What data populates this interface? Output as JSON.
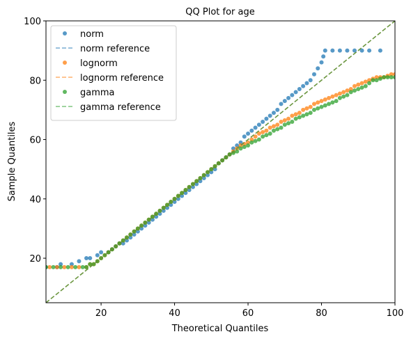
{
  "chart_data": {
    "type": "scatter",
    "title": "QQ Plot for age",
    "xlabel": "Theoretical Quantiles",
    "ylabel": "Sample Quantiles",
    "xlim": [
      5,
      100
    ],
    "ylim": [
      5,
      100
    ],
    "xticks": [
      20,
      40,
      60,
      80,
      100
    ],
    "yticks": [
      20,
      40,
      60,
      80,
      100
    ],
    "grid": false,
    "legend_position": "top-left",
    "series": [
      {
        "name": "norm",
        "kind": "points",
        "color": "#1f77b4",
        "points": [
          [
            5,
            17
          ],
          [
            8,
            17
          ],
          [
            9,
            18
          ],
          [
            12,
            18
          ],
          [
            14,
            19
          ],
          [
            16,
            20
          ],
          [
            17,
            20
          ],
          [
            19,
            21
          ],
          [
            20,
            22
          ],
          [
            22,
            22
          ],
          [
            23,
            23
          ],
          [
            24,
            24
          ],
          [
            25,
            25
          ],
          [
            26,
            25
          ],
          [
            27,
            26
          ],
          [
            28,
            27
          ],
          [
            29,
            28
          ],
          [
            30,
            29
          ],
          [
            31,
            30
          ],
          [
            32,
            31
          ],
          [
            33,
            32
          ],
          [
            34,
            33
          ],
          [
            35,
            34
          ],
          [
            36,
            35
          ],
          [
            37,
            36
          ],
          [
            38,
            37
          ],
          [
            39,
            38
          ],
          [
            40,
            39
          ],
          [
            41,
            40
          ],
          [
            42,
            41
          ],
          [
            43,
            42
          ],
          [
            44,
            43
          ],
          [
            45,
            44
          ],
          [
            46,
            45
          ],
          [
            47,
            46
          ],
          [
            48,
            47
          ],
          [
            49,
            48
          ],
          [
            50,
            49
          ],
          [
            51,
            50
          ],
          [
            52,
            52
          ],
          [
            53,
            53
          ],
          [
            54,
            54
          ],
          [
            55,
            55
          ],
          [
            56,
            57
          ],
          [
            57,
            58
          ],
          [
            58,
            59
          ],
          [
            59,
            61
          ],
          [
            60,
            62
          ],
          [
            61,
            63
          ],
          [
            62,
            64
          ],
          [
            63,
            65
          ],
          [
            64,
            66
          ],
          [
            65,
            67
          ],
          [
            66,
            68
          ],
          [
            67,
            69
          ],
          [
            68,
            70
          ],
          [
            69,
            72
          ],
          [
            70,
            73
          ],
          [
            71,
            74
          ],
          [
            72,
            75
          ],
          [
            73,
            76
          ],
          [
            74,
            77
          ],
          [
            75,
            78
          ],
          [
            76,
            79
          ],
          [
            77,
            80
          ],
          [
            78,
            82
          ],
          [
            79,
            84
          ],
          [
            80,
            86
          ],
          [
            80.5,
            88
          ],
          [
            81,
            90
          ],
          [
            83,
            90
          ],
          [
            85,
            90
          ],
          [
            87,
            90
          ],
          [
            89,
            90
          ],
          [
            91,
            90
          ],
          [
            93,
            90
          ],
          [
            96,
            90
          ]
        ]
      },
      {
        "name": "norm reference",
        "kind": "line",
        "color": "#1f77b4",
        "points": [
          [
            5,
            5
          ],
          [
            100,
            100
          ]
        ]
      },
      {
        "name": "lognorm",
        "kind": "points",
        "color": "#ff7f0e",
        "points": [
          [
            6,
            17
          ],
          [
            8,
            17
          ],
          [
            10,
            17
          ],
          [
            12,
            17
          ],
          [
            14,
            17
          ],
          [
            16,
            17
          ],
          [
            17,
            18
          ],
          [
            18,
            18
          ],
          [
            19,
            19
          ],
          [
            20,
            20
          ],
          [
            21,
            21
          ],
          [
            22,
            22
          ],
          [
            23,
            23
          ],
          [
            24,
            24
          ],
          [
            25,
            25
          ],
          [
            26,
            26
          ],
          [
            27,
            27
          ],
          [
            28,
            28
          ],
          [
            29,
            29
          ],
          [
            30,
            30
          ],
          [
            31,
            31
          ],
          [
            32,
            32
          ],
          [
            33,
            33
          ],
          [
            34,
            34
          ],
          [
            35,
            35
          ],
          [
            36,
            36
          ],
          [
            37,
            37
          ],
          [
            38,
            38
          ],
          [
            39,
            39
          ],
          [
            40,
            40
          ],
          [
            41,
            41
          ],
          [
            42,
            42
          ],
          [
            43,
            43
          ],
          [
            44,
            44
          ],
          [
            45,
            45
          ],
          [
            46,
            46
          ],
          [
            47,
            47
          ],
          [
            48,
            48
          ],
          [
            49,
            49
          ],
          [
            50,
            50
          ],
          [
            51,
            51
          ],
          [
            52,
            52
          ],
          [
            53,
            53
          ],
          [
            54,
            54
          ],
          [
            55,
            55
          ],
          [
            56,
            56
          ],
          [
            57,
            57
          ],
          [
            58,
            58
          ],
          [
            59,
            58.5
          ],
          [
            60,
            59
          ],
          [
            61,
            60
          ],
          [
            62,
            61
          ],
          [
            63,
            62
          ],
          [
            64,
            62.5
          ],
          [
            65,
            63
          ],
          [
            66,
            64
          ],
          [
            67,
            64.5
          ],
          [
            68,
            65
          ],
          [
            69,
            66
          ],
          [
            70,
            66.5
          ],
          [
            71,
            67
          ],
          [
            72,
            68
          ],
          [
            73,
            68.5
          ],
          [
            74,
            69
          ],
          [
            75,
            70
          ],
          [
            76,
            70.5
          ],
          [
            77,
            71
          ],
          [
            78,
            72
          ],
          [
            79,
            72.5
          ],
          [
            80,
            73
          ],
          [
            81,
            73.5
          ],
          [
            82,
            74
          ],
          [
            83,
            74.5
          ],
          [
            84,
            75
          ],
          [
            85,
            75.5
          ],
          [
            86,
            76
          ],
          [
            87,
            76.5
          ],
          [
            88,
            77
          ],
          [
            89,
            78
          ],
          [
            90,
            78.5
          ],
          [
            91,
            79
          ],
          [
            92,
            79.5
          ],
          [
            93,
            80
          ],
          [
            94,
            80.5
          ],
          [
            95,
            81
          ],
          [
            96,
            81
          ],
          [
            97,
            81
          ],
          [
            98,
            81.5
          ],
          [
            99,
            82
          ],
          [
            100,
            82
          ]
        ]
      },
      {
        "name": "lognorm reference",
        "kind": "line",
        "color": "#ff7f0e",
        "points": [
          [
            5,
            5
          ],
          [
            100,
            100
          ]
        ]
      },
      {
        "name": "gamma",
        "kind": "points",
        "color": "#2ca02c",
        "points": [
          [
            5,
            17
          ],
          [
            7,
            17
          ],
          [
            9,
            17
          ],
          [
            11,
            17
          ],
          [
            13,
            17
          ],
          [
            15,
            17
          ],
          [
            16,
            17
          ],
          [
            17,
            18
          ],
          [
            18,
            18
          ],
          [
            19,
            19
          ],
          [
            20,
            20
          ],
          [
            21,
            21
          ],
          [
            22,
            22
          ],
          [
            23,
            23
          ],
          [
            24,
            24
          ],
          [
            25,
            25
          ],
          [
            26,
            26
          ],
          [
            27,
            27
          ],
          [
            28,
            28
          ],
          [
            29,
            29
          ],
          [
            30,
            30
          ],
          [
            31,
            31
          ],
          [
            32,
            32
          ],
          [
            33,
            33
          ],
          [
            34,
            34
          ],
          [
            35,
            35
          ],
          [
            36,
            36
          ],
          [
            37,
            37
          ],
          [
            38,
            38
          ],
          [
            39,
            39
          ],
          [
            40,
            40
          ],
          [
            41,
            41
          ],
          [
            42,
            42
          ],
          [
            43,
            43
          ],
          [
            44,
            44
          ],
          [
            45,
            45
          ],
          [
            46,
            46
          ],
          [
            47,
            47
          ],
          [
            48,
            48
          ],
          [
            49,
            49
          ],
          [
            50,
            50
          ],
          [
            51,
            51
          ],
          [
            52,
            52
          ],
          [
            53,
            53
          ],
          [
            54,
            54
          ],
          [
            55,
            55
          ],
          [
            56,
            55.5
          ],
          [
            57,
            56
          ],
          [
            58,
            57
          ],
          [
            59,
            57.5
          ],
          [
            60,
            58
          ],
          [
            61,
            59
          ],
          [
            62,
            59.5
          ],
          [
            63,
            60
          ],
          [
            64,
            61
          ],
          [
            65,
            61.5
          ],
          [
            66,
            62
          ],
          [
            67,
            63
          ],
          [
            68,
            63.5
          ],
          [
            69,
            64
          ],
          [
            70,
            65
          ],
          [
            71,
            65.5
          ],
          [
            72,
            66
          ],
          [
            73,
            67
          ],
          [
            74,
            67.5
          ],
          [
            75,
            68
          ],
          [
            76,
            68.5
          ],
          [
            77,
            69
          ],
          [
            78,
            70
          ],
          [
            79,
            70.5
          ],
          [
            80,
            71
          ],
          [
            81,
            71.5
          ],
          [
            82,
            72
          ],
          [
            83,
            72.5
          ],
          [
            84,
            73
          ],
          [
            85,
            74
          ],
          [
            86,
            74.5
          ],
          [
            87,
            75
          ],
          [
            88,
            76
          ],
          [
            89,
            76.5
          ],
          [
            90,
            77
          ],
          [
            91,
            77.5
          ],
          [
            92,
            78
          ],
          [
            93,
            79
          ],
          [
            94,
            80
          ],
          [
            95,
            80
          ],
          [
            96,
            80.5
          ],
          [
            97,
            81
          ],
          [
            98,
            81
          ],
          [
            99,
            81
          ],
          [
            100,
            81
          ]
        ]
      },
      {
        "name": "gamma reference",
        "kind": "line",
        "color": "#2ca02c",
        "points": [
          [
            5,
            5
          ],
          [
            100,
            100
          ]
        ]
      }
    ]
  }
}
